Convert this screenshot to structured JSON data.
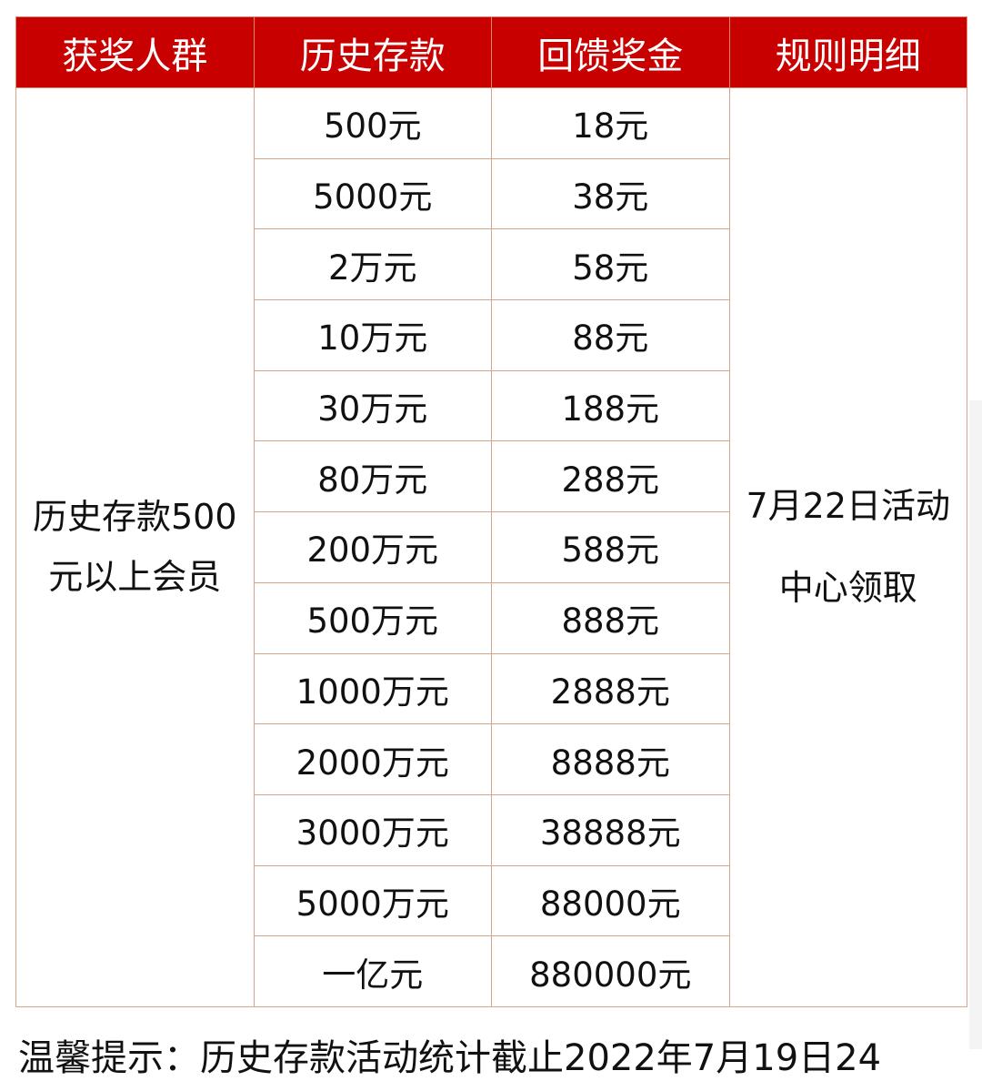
{
  "header": [
    "获奖人群",
    "历史存款",
    "回馈奖金",
    "规则明细"
  ],
  "group": "历史存款500元以上会员",
  "rule": "7月22日活动中心领取",
  "rows": [
    {
      "deposit": "500元",
      "bonus": "18元"
    },
    {
      "deposit": "5000元",
      "bonus": "38元"
    },
    {
      "deposit": "2万元",
      "bonus": "58元"
    },
    {
      "deposit": "10万元",
      "bonus": "88元"
    },
    {
      "deposit": "30万元",
      "bonus": "188元"
    },
    {
      "deposit": "80万元",
      "bonus": "288元"
    },
    {
      "deposit": "200万元",
      "bonus": "588元"
    },
    {
      "deposit": "500万元",
      "bonus": "888元"
    },
    {
      "deposit": "1000万元",
      "bonus": "2888元"
    },
    {
      "deposit": "2000万元",
      "bonus": "8888元"
    },
    {
      "deposit": "3000万元",
      "bonus": "38888元"
    },
    {
      "deposit": "5000万元",
      "bonus": "88000元"
    },
    {
      "deposit": "一亿元",
      "bonus": "880000元"
    }
  ],
  "note": "温馨提示：历史存款活动统计截止2022年7月19日24",
  "colors": {
    "header_bg": "#c80000",
    "border": "#d9a488"
  }
}
